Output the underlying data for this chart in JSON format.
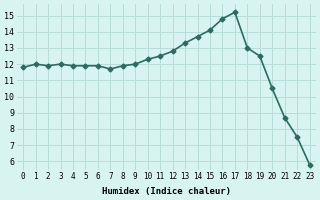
{
  "x": [
    0,
    1,
    2,
    3,
    4,
    5,
    6,
    7,
    8,
    9,
    10,
    11,
    12,
    13,
    14,
    15,
    16,
    17,
    18,
    19,
    20,
    21,
    22,
    23
  ],
  "y": [
    11.8,
    12.0,
    11.9,
    12.0,
    11.9,
    11.9,
    11.9,
    11.7,
    11.9,
    12.0,
    12.3,
    12.5,
    12.8,
    13.3,
    13.7,
    14.1,
    14.8,
    15.2,
    13.0,
    12.5,
    10.5,
    8.7,
    7.5,
    5.8
  ],
  "xlabel": "Humidex (Indice chaleur)",
  "xlim": [
    -0.5,
    23.5
  ],
  "ylim": [
    5.5,
    15.7
  ],
  "yticks": [
    6,
    7,
    8,
    9,
    10,
    11,
    12,
    13,
    14,
    15
  ],
  "xtick_labels": [
    "0",
    "1",
    "2",
    "3",
    "4",
    "5",
    "6",
    "7",
    "8",
    "9",
    "10",
    "11",
    "12",
    "13",
    "14",
    "15",
    "16",
    "17",
    "18",
    "19",
    "20",
    "21",
    "22",
    "23"
  ],
  "line_color": "#2e6b5e",
  "bg_color": "#d8f4f0",
  "grid_color": "#b8dcd6",
  "marker": "D",
  "marker_size": 2.5,
  "line_width": 1.2
}
